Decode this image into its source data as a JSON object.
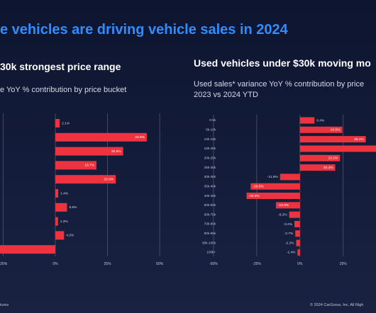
{
  "title": "e vehicles are driving vehicle sales in 2024",
  "footer_left": "tures",
  "footer_right": "© 2024 CarGurus, Inc. All Righ",
  "chart_data": [
    {
      "type": "bar",
      "orientation": "horizontal",
      "title": "30k strongest price range",
      "subtitle": [
        "e YoY % contribution by price bucket"
      ],
      "categories": [
        null,
        null,
        null,
        null,
        null,
        null,
        null,
        null,
        null,
        null
      ],
      "values": [
        2.1,
        43.8,
        32.5,
        19.7,
        28.9,
        1.4,
        5.6,
        1.3,
        4.2,
        -27
      ],
      "value_labels": [
        "2.1%",
        "43.8%",
        "32.5%",
        "19.7%",
        "28.9%",
        "1.4%",
        "5.6%",
        "1.3%",
        "4.2%",
        null
      ],
      "color": "#ee3340",
      "xlim": [
        -26.5,
        52
      ],
      "xticks": [
        {
          "value": -25,
          "label": "-25%"
        },
        {
          "value": 0,
          "label": "0%"
        },
        {
          "value": 25,
          "label": "25%"
        },
        {
          "value": 50,
          "label": "50%"
        }
      ],
      "grid": true
    },
    {
      "type": "bar",
      "orientation": "horizontal",
      "title": "Used vehicles under $30k moving mo",
      "subtitle": [
        "Used sales* variance YoY % contribution by price",
        "2023 vs 2024 YTD"
      ],
      "categories": [
        "0-5k",
        "5k-10k",
        "10k-15k",
        "15k-20k",
        "20k-25k",
        "25k-30k",
        "30k-35k",
        "35k-40k",
        "40k-45k",
        "50k-60k",
        "60k-70k",
        "70k-80k",
        "80k-90k",
        "90k-100k",
        "100k+"
      ],
      "values": [
        8.4,
        24.5,
        38.1,
        45,
        23.2,
        20.4,
        -11.5,
        -28.5,
        -30.9,
        -13.9,
        -6.2,
        -3.2,
        -2.7,
        -2.2,
        -1.4
      ],
      "value_labels": [
        "8.4%",
        "24.5%",
        "38.1%",
        null,
        "23.2%",
        "20.4%",
        "-11.5%",
        "-28.5%",
        "-30.9%",
        "-13.9%",
        "-6.2%",
        "-3.2%",
        "-2.7%",
        "-2.2%",
        "-1.4%"
      ],
      "color": "#ee3340",
      "xlim": [
        -54.5,
        44
      ],
      "xticks": [
        {
          "value": -50,
          "label": "-50%"
        },
        {
          "value": -25,
          "label": "-25%"
        },
        {
          "value": 0,
          "label": "0%"
        },
        {
          "value": 25,
          "label": "25%"
        }
      ],
      "grid": true
    }
  ]
}
